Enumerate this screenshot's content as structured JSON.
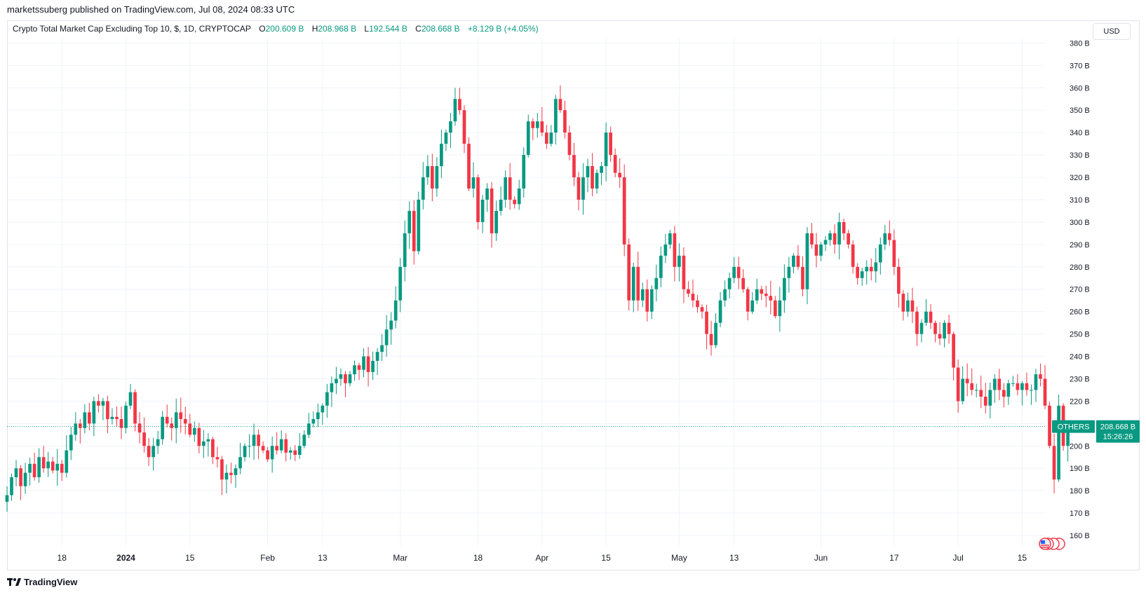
{
  "header": {
    "published": "marketssuberg published on TradingView.com, Jul 08, 2024 08:33 UTC"
  },
  "legend": {
    "symbol": "Crypto Total Market Cap Excluding Top 10, $, 1D, CRYPTOCAP",
    "open_label": "O",
    "open": "200.609 B",
    "high_label": "H",
    "high": "208.968 B",
    "low_label": "L",
    "low": "192.544 B",
    "close_label": "C",
    "close": "208.668 B",
    "change": "+8.129 B (+4.05%)"
  },
  "currency_button": "USD",
  "footer": {
    "logo_text": "TradingView",
    "logo_icon": "tradingview-logo-icon"
  },
  "price_tag": {
    "name": "OTHERS",
    "value": "208.668 B",
    "countdown": "15:26:26",
    "color": "#089981"
  },
  "colors": {
    "up": "#089981",
    "down": "#f23645",
    "grid": "#f0f3fa",
    "axis_text": "#131722"
  },
  "chart_data": {
    "type": "candlestick",
    "y_unit": "B",
    "ylim": [
      155,
      382
    ],
    "y_ticks": [
      160,
      170,
      180,
      190,
      200,
      210,
      220,
      230,
      240,
      250,
      260,
      270,
      280,
      290,
      300,
      310,
      320,
      330,
      340,
      350,
      360,
      370,
      380
    ],
    "y_tick_labels": [
      "160 B",
      "170 B",
      "180 B",
      "190 B",
      "200 B",
      "210 B",
      "220 B",
      "230 B",
      "240 B",
      "250 B",
      "260 B",
      "270 B",
      "280 B",
      "290 B",
      "300 B",
      "310 B",
      "320 B",
      "330 B",
      "340 B",
      "350 B",
      "360 B",
      "370 B",
      "380 B"
    ],
    "x_range": [
      "2023-12-06",
      "2024-07-20"
    ],
    "x_ticks": [
      {
        "date": "2023-12-18",
        "label": "18",
        "bold": false
      },
      {
        "date": "2024-01-01",
        "label": "2024",
        "bold": true
      },
      {
        "date": "2024-01-15",
        "label": "15",
        "bold": false
      },
      {
        "date": "2024-02-01",
        "label": "Feb",
        "bold": false
      },
      {
        "date": "2024-02-13",
        "label": "13",
        "bold": false
      },
      {
        "date": "2024-03-01",
        "label": "Mar",
        "bold": false
      },
      {
        "date": "2024-03-18",
        "label": "18",
        "bold": false
      },
      {
        "date": "2024-04-01",
        "label": "Apr",
        "bold": false
      },
      {
        "date": "2024-04-15",
        "label": "15",
        "bold": false
      },
      {
        "date": "2024-05-01",
        "label": "May",
        "bold": false
      },
      {
        "date": "2024-05-13",
        "label": "13",
        "bold": false
      },
      {
        "date": "2024-06-01",
        "label": "Jun",
        "bold": false
      },
      {
        "date": "2024-06-17",
        "label": "17",
        "bold": false
      },
      {
        "date": "2024-07-01",
        "label": "Jul",
        "bold": false
      },
      {
        "date": "2024-07-15",
        "label": "15",
        "bold": false
      }
    ],
    "first_candle_date": "2023-12-06",
    "last_price": 208.668,
    "closes": [
      178,
      186,
      190,
      182,
      188,
      192,
      186,
      195,
      190,
      193,
      189,
      192,
      188,
      198,
      205,
      210,
      208,
      215,
      210,
      220,
      218,
      220,
      212,
      213,
      212,
      208,
      218,
      224,
      210,
      206,
      200,
      195,
      200,
      203,
      213,
      210,
      208,
      215,
      212,
      210,
      205,
      208,
      200,
      202,
      203,
      195,
      194,
      185,
      188,
      187,
      190,
      195,
      200,
      200,
      205,
      200,
      198,
      194,
      200,
      198,
      203,
      197,
      198,
      196,
      200,
      205,
      210,
      212,
      215,
      218,
      224,
      228,
      230,
      232,
      228,
      232,
      236,
      234,
      240,
      233,
      238,
      242,
      245,
      252,
      256,
      265,
      280,
      295,
      305,
      287,
      310,
      320,
      325,
      315,
      325,
      335,
      340,
      345,
      355,
      350,
      335,
      315,
      320,
      300,
      310,
      315,
      295,
      305,
      310,
      320,
      310,
      308,
      315,
      330,
      345,
      342,
      345,
      340,
      335,
      340,
      355,
      350,
      340,
      330,
      320,
      310,
      320,
      325,
      315,
      322,
      325,
      340,
      330,
      322,
      320,
      290,
      265,
      280,
      265,
      270,
      260,
      270,
      275,
      285,
      290,
      295,
      280,
      285,
      270,
      268,
      265,
      262,
      260,
      250,
      245,
      255,
      265,
      270,
      275,
      280,
      275,
      270,
      260,
      265,
      270,
      268,
      267,
      265,
      258,
      265,
      275,
      280,
      285,
      280,
      270,
      295,
      290,
      285,
      290,
      292,
      295,
      290,
      300,
      295,
      290,
      280,
      275,
      278,
      280,
      278,
      282,
      290,
      295,
      292,
      280,
      268,
      260,
      265,
      260,
      250,
      255,
      260,
      255,
      250,
      248,
      255,
      250,
      235,
      220,
      230,
      228,
      225,
      225,
      222,
      218,
      225,
      230,
      225,
      222,
      228,
      228,
      225,
      228,
      225,
      225,
      232,
      230,
      218,
      200,
      185,
      218,
      200,
      208.668
    ],
    "candles_note": "Daily OHLC candles; green = close above open, red = close below open"
  }
}
